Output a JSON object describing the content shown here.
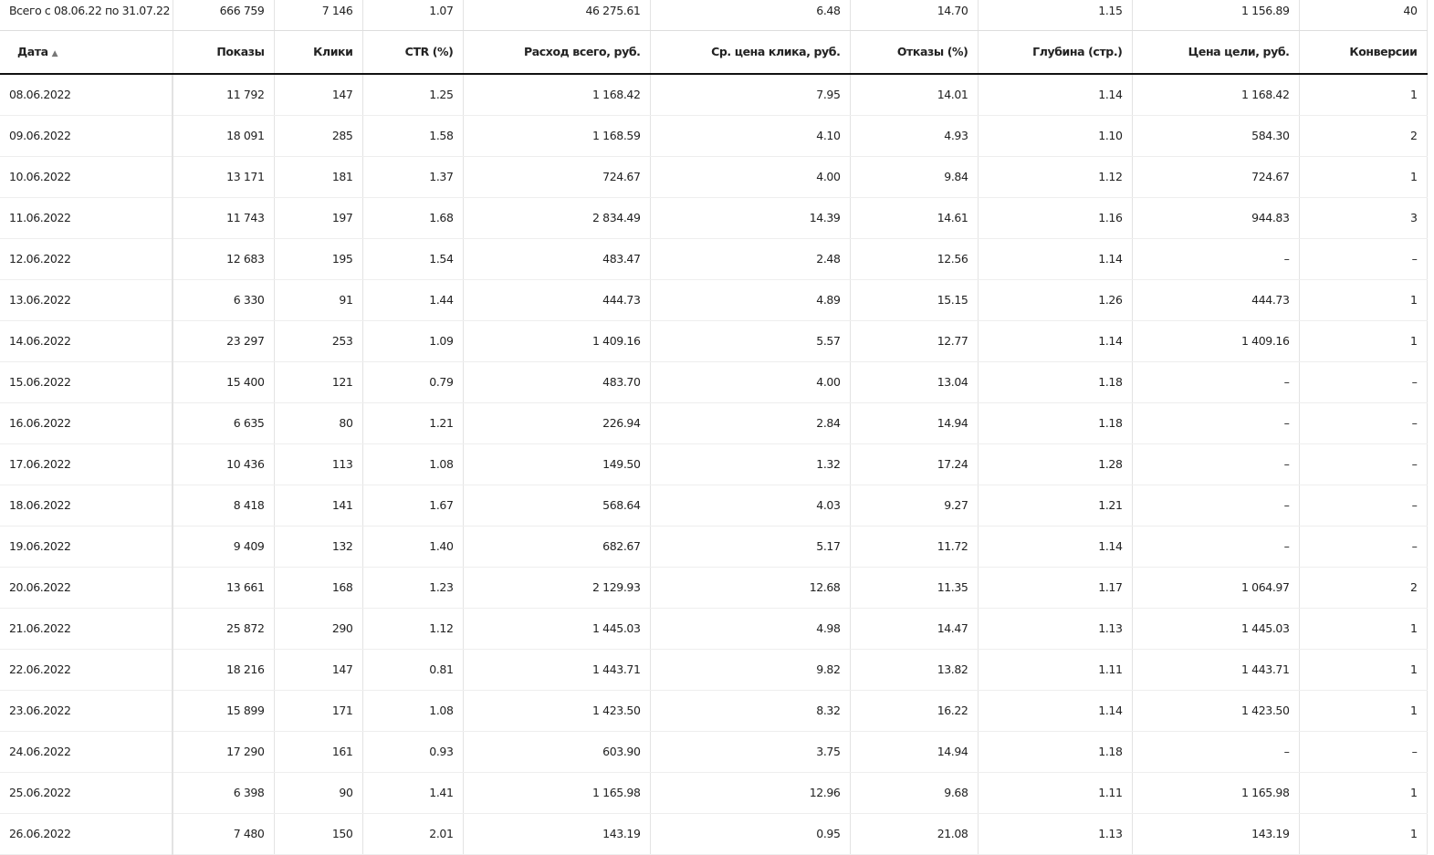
{
  "total": {
    "label": "Всего с 08.06.22 по 31.07.22",
    "values": [
      "666 759",
      "7 146",
      "1.07",
      "46 275.61",
      "6.48",
      "14.70",
      "1.15",
      "1 156.89",
      "40"
    ]
  },
  "columns": [
    "Дата",
    "Показы",
    "Клики",
    "CTR (%)",
    "Расход всего, руб.",
    "Ср. цена клика, руб.",
    "Отказы (%)",
    "Глубина (стр.)",
    "Цена цели, руб.",
    "Конверсии"
  ],
  "sort_indicator": "▲",
  "rows": [
    [
      "08.06.2022",
      "11 792",
      "147",
      "1.25",
      "1 168.42",
      "7.95",
      "14.01",
      "1.14",
      "1 168.42",
      "1"
    ],
    [
      "09.06.2022",
      "18 091",
      "285",
      "1.58",
      "1 168.59",
      "4.10",
      "4.93",
      "1.10",
      "584.30",
      "2"
    ],
    [
      "10.06.2022",
      "13 171",
      "181",
      "1.37",
      "724.67",
      "4.00",
      "9.84",
      "1.12",
      "724.67",
      "1"
    ],
    [
      "11.06.2022",
      "11 743",
      "197",
      "1.68",
      "2 834.49",
      "14.39",
      "14.61",
      "1.16",
      "944.83",
      "3"
    ],
    [
      "12.06.2022",
      "12 683",
      "195",
      "1.54",
      "483.47",
      "2.48",
      "12.56",
      "1.14",
      "–",
      "–"
    ],
    [
      "13.06.2022",
      "6 330",
      "91",
      "1.44",
      "444.73",
      "4.89",
      "15.15",
      "1.26",
      "444.73",
      "1"
    ],
    [
      "14.06.2022",
      "23 297",
      "253",
      "1.09",
      "1 409.16",
      "5.57",
      "12.77",
      "1.14",
      "1 409.16",
      "1"
    ],
    [
      "15.06.2022",
      "15 400",
      "121",
      "0.79",
      "483.70",
      "4.00",
      "13.04",
      "1.18",
      "–",
      "–"
    ],
    [
      "16.06.2022",
      "6 635",
      "80",
      "1.21",
      "226.94",
      "2.84",
      "14.94",
      "1.18",
      "–",
      "–"
    ],
    [
      "17.06.2022",
      "10 436",
      "113",
      "1.08",
      "149.50",
      "1.32",
      "17.24",
      "1.28",
      "–",
      "–"
    ],
    [
      "18.06.2022",
      "8 418",
      "141",
      "1.67",
      "568.64",
      "4.03",
      "9.27",
      "1.21",
      "–",
      "–"
    ],
    [
      "19.06.2022",
      "9 409",
      "132",
      "1.40",
      "682.67",
      "5.17",
      "11.72",
      "1.14",
      "–",
      "–"
    ],
    [
      "20.06.2022",
      "13 661",
      "168",
      "1.23",
      "2 129.93",
      "12.68",
      "11.35",
      "1.17",
      "1 064.97",
      "2"
    ],
    [
      "21.06.2022",
      "25 872",
      "290",
      "1.12",
      "1 445.03",
      "4.98",
      "14.47",
      "1.13",
      "1 445.03",
      "1"
    ],
    [
      "22.06.2022",
      "18 216",
      "147",
      "0.81",
      "1 443.71",
      "9.82",
      "13.82",
      "1.11",
      "1 443.71",
      "1"
    ],
    [
      "23.06.2022",
      "15 899",
      "171",
      "1.08",
      "1 423.50",
      "8.32",
      "16.22",
      "1.14",
      "1 423.50",
      "1"
    ],
    [
      "24.06.2022",
      "17 290",
      "161",
      "0.93",
      "603.90",
      "3.75",
      "14.94",
      "1.18",
      "–",
      "–"
    ],
    [
      "25.06.2022",
      "6 398",
      "90",
      "1.41",
      "1 165.98",
      "12.96",
      "9.68",
      "1.11",
      "1 165.98",
      "1"
    ],
    [
      "26.06.2022",
      "7 480",
      "150",
      "2.01",
      "143.19",
      "0.95",
      "21.08",
      "1.13",
      "143.19",
      "1"
    ]
  ]
}
